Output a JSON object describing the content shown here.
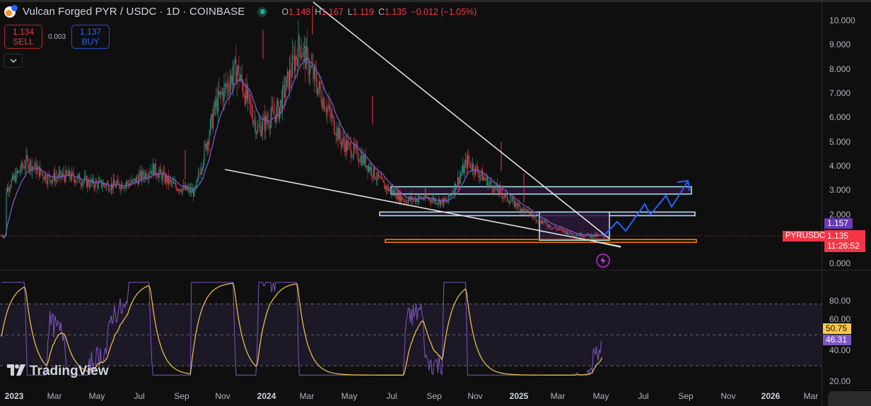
{
  "header": {
    "title": "Vulcan Forged PYR / USDC · 1D · COINBASE",
    "symbol_icon": "pyr-coin-icon",
    "market_status_icon": "market-open-dot-icon",
    "ohlc": {
      "o_label": "O",
      "o": "1.148",
      "h_label": "H",
      "h": "1.167",
      "l_label": "L",
      "l": "1.119",
      "c_label": "C",
      "c": "1.135",
      "change": "−0.012 (−1.05%)"
    }
  },
  "trade": {
    "sell_price": "1.134",
    "sell_label": "SELL",
    "spread": "0.003",
    "buy_price": "1.137",
    "buy_label": "BUY",
    "collapse_icon": "chevron-down-icon"
  },
  "price_axis": {
    "ticks": [
      "10.000",
      "9.000",
      "8.000",
      "7.000",
      "6.000",
      "5.000",
      "4.000",
      "3.000",
      "2.000",
      "0.000"
    ],
    "ma_label": "1.157",
    "last_price": "1.135",
    "countdown": "11:26:52",
    "symbol_tag": "PYRUSDC"
  },
  "rsi_axis": {
    "ticks": [
      "80.00",
      "60.00",
      "40.00",
      "20.00"
    ],
    "rsi_ma_value": "50.75",
    "rsi_value": "46.31"
  },
  "time_axis": {
    "labels": [
      {
        "t": "2023",
        "year": true
      },
      {
        "t": "Mar"
      },
      {
        "t": "May"
      },
      {
        "t": "Jul"
      },
      {
        "t": "Sep"
      },
      {
        "t": "Nov"
      },
      {
        "t": "2024",
        "year": true
      },
      {
        "t": "Mar"
      },
      {
        "t": "May"
      },
      {
        "t": "Jul"
      },
      {
        "t": "Sep"
      },
      {
        "t": "Nov"
      },
      {
        "t": "2025",
        "year": true
      },
      {
        "t": "Mar"
      },
      {
        "t": "May"
      },
      {
        "t": "Jul"
      },
      {
        "t": "Sep"
      },
      {
        "t": "Nov"
      },
      {
        "t": "2026",
        "year": true
      },
      {
        "t": "Mar"
      }
    ]
  },
  "branding": {
    "logo_text": "TradingView"
  },
  "colors": {
    "up": "#22ab94",
    "down": "#f23645",
    "ma": "#7e57c2",
    "rsi": "#7e57c2",
    "rsi_ma": "#f7c948",
    "zone_border": "#b2ebf2",
    "zone_fill": "#2a1838",
    "support_line": "#f57c00",
    "projection": "#2962ff",
    "trendline": "#e0e0e0"
  },
  "chart_data": [
    {
      "type": "candlestick",
      "title": "Vulcan Forged PYR / USDC · 1D · COINBASE",
      "xlabel": "",
      "ylabel": "Price (USDC)",
      "ylim": [
        0,
        10.5
      ],
      "x_ticks": [
        "2023",
        "Mar",
        "May",
        "Jul",
        "Sep",
        "Nov",
        "2024",
        "Mar",
        "May",
        "Jul",
        "Sep",
        "Nov",
        "2025",
        "Mar",
        "May",
        "Jul",
        "Sep",
        "Nov",
        "2026",
        "Mar"
      ],
      "y_ticks": [
        0,
        2,
        3,
        4,
        5,
        6,
        7,
        8,
        9,
        10
      ],
      "series": [
        {
          "name": "PYRUSDC close (approx. monthly)",
          "x": [
            "2023-01",
            "2023-02",
            "2023-03",
            "2023-04",
            "2023-05",
            "2023-06",
            "2023-07",
            "2023-08",
            "2023-09",
            "2023-10",
            "2023-11",
            "2023-12",
            "2024-01",
            "2024-02",
            "2024-03",
            "2024-04",
            "2024-05",
            "2024-06",
            "2024-07",
            "2024-08",
            "2024-09",
            "2024-10",
            "2024-11",
            "2024-12",
            "2025-01",
            "2025-02",
            "2025-03",
            "2025-04",
            "2025-05"
          ],
          "values": [
            3.0,
            4.2,
            3.5,
            3.6,
            3.3,
            3.2,
            3.3,
            3.9,
            3.2,
            2.9,
            6.5,
            8.0,
            5.5,
            6.3,
            9.0,
            7.0,
            5.0,
            4.3,
            3.2,
            2.6,
            2.7,
            2.5,
            4.2,
            3.3,
            2.6,
            2.0,
            1.5,
            1.2,
            1.135
          ]
        },
        {
          "name": "Moving average",
          "last": 1.157
        }
      ],
      "annotations": [
        {
          "type": "trendline",
          "label": "upper descending line",
          "from": [
            "2024-03",
            10.6
          ],
          "to": [
            "2025-05",
            1.3
          ]
        },
        {
          "type": "trendline",
          "label": "lower descending line",
          "from": [
            "2023-11",
            3.9
          ],
          "to": [
            "2025-05",
            0.7
          ]
        },
        {
          "type": "zone",
          "label": "resistance zone",
          "range": [
            2.85,
            3.15
          ],
          "x": [
            "2024-07",
            "2025-09"
          ]
        },
        {
          "type": "zone",
          "label": "mid zone",
          "range": [
            1.95,
            2.1
          ],
          "x": [
            "2024-07",
            "2025-09"
          ]
        },
        {
          "type": "zone",
          "label": "consolidation box",
          "range": [
            0.95,
            2.1
          ],
          "x": [
            "2025-01",
            "2025-05"
          ]
        },
        {
          "type": "line",
          "label": "support",
          "value": 0.95,
          "color": "#f57c00"
        },
        {
          "type": "projection",
          "label": "bullish zigzag path",
          "to_value": 3.4,
          "to_x": "2025-09"
        }
      ],
      "last_price": 1.135
    },
    {
      "type": "line",
      "title": "RSI",
      "ylim": [
        20,
        85
      ],
      "y_ticks": [
        20,
        40,
        60,
        80
      ],
      "bands": [
        30,
        50,
        70
      ],
      "series": [
        {
          "name": "RSI",
          "last": 46.31,
          "color": "#7e57c2"
        },
        {
          "name": "RSI MA",
          "last": 50.75,
          "color": "#f7c948"
        }
      ]
    }
  ]
}
